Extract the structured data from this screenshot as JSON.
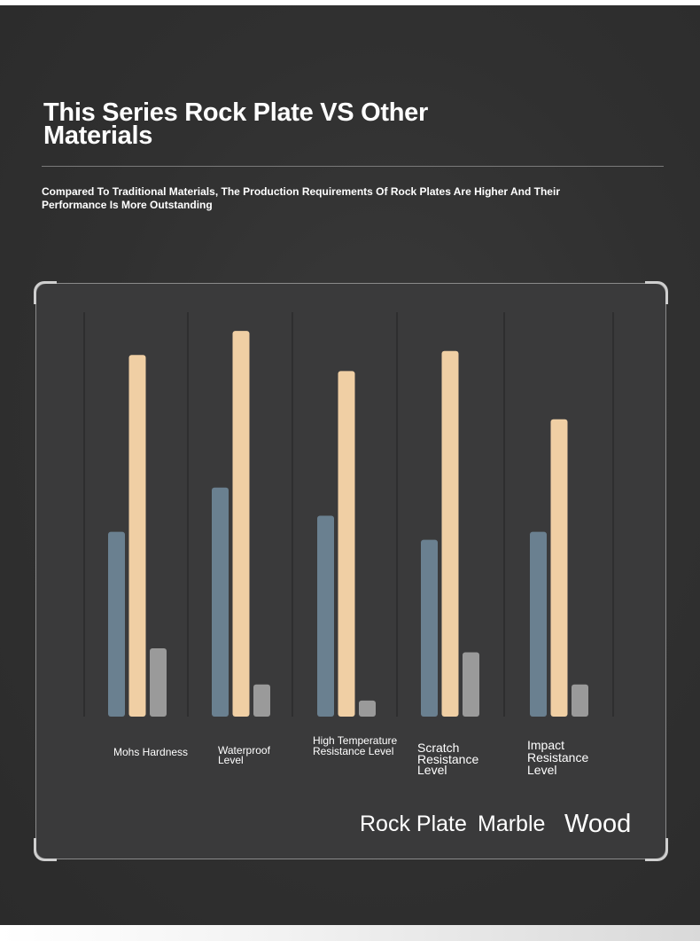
{
  "header": {
    "title": "This Series Rock Plate VS Other Materials",
    "subtitle": "Compared To Traditional Materials, The Production Requirements Of Rock Plates Are Higher And Their Performance Is More Outstanding"
  },
  "colors": {
    "background": "#303030",
    "frame": "#3a3a3b",
    "series_rock_plate": "#6a8090",
    "series_marble": "#f0cfa4",
    "series_wood": "#9a9a9a"
  },
  "chart_data": {
    "type": "bar",
    "title": "",
    "xlabel": "",
    "ylabel": "",
    "ylim": [
      0,
      100
    ],
    "grid": false,
    "legend_position": "bottom-right",
    "categories": [
      "Mohs Hardness",
      "Waterproof Level",
      "High Temperature Resistance Level",
      "Scratch Resistance Level",
      "Impact Resistance Level"
    ],
    "series": [
      {
        "name": "Rock Plate",
        "values": [
          46,
          57,
          50,
          44,
          46
        ]
      },
      {
        "name": "Marble",
        "values": [
          90,
          96,
          86,
          91,
          74
        ]
      },
      {
        "name": "Wood",
        "values": [
          17,
          8,
          4,
          16,
          8
        ]
      }
    ]
  }
}
